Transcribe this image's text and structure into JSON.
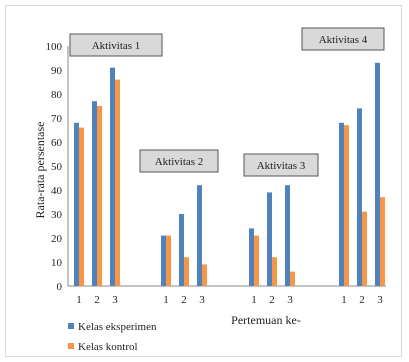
{
  "chart_data": {
    "type": "bar",
    "title": "",
    "ylabel": "Rata-rata persentase",
    "xlabel": "Pertemuan ke-",
    "ylim": [
      0,
      100
    ],
    "yticks": [
      0,
      10,
      20,
      30,
      40,
      50,
      60,
      70,
      80,
      90,
      100
    ],
    "grid": false,
    "legend_position": "bottom-left",
    "groups": [
      {
        "label": "Aktivitas 1",
        "categories": [
          "1",
          "2",
          "3"
        ]
      },
      {
        "label": "Aktivitas 2",
        "categories": [
          "1",
          "2",
          "3"
        ]
      },
      {
        "label": "Aktivitas 3",
        "categories": [
          "1",
          "2",
          "3"
        ]
      },
      {
        "label": "Aktivitas 4",
        "categories": [
          "1",
          "2",
          "3"
        ]
      }
    ],
    "series": [
      {
        "name": "Kelas eksperimen",
        "color": "#4f81bd",
        "values": [
          [
            68,
            77,
            91
          ],
          [
            21,
            30,
            42
          ],
          [
            24,
            39,
            42
          ],
          [
            68,
            74,
            93
          ]
        ]
      },
      {
        "name": "Kelas kontrol",
        "color": "#f79646",
        "values": [
          [
            66,
            75,
            86
          ],
          [
            21,
            12,
            9
          ],
          [
            21,
            12,
            6
          ],
          [
            67,
            31,
            37
          ]
        ]
      }
    ]
  }
}
